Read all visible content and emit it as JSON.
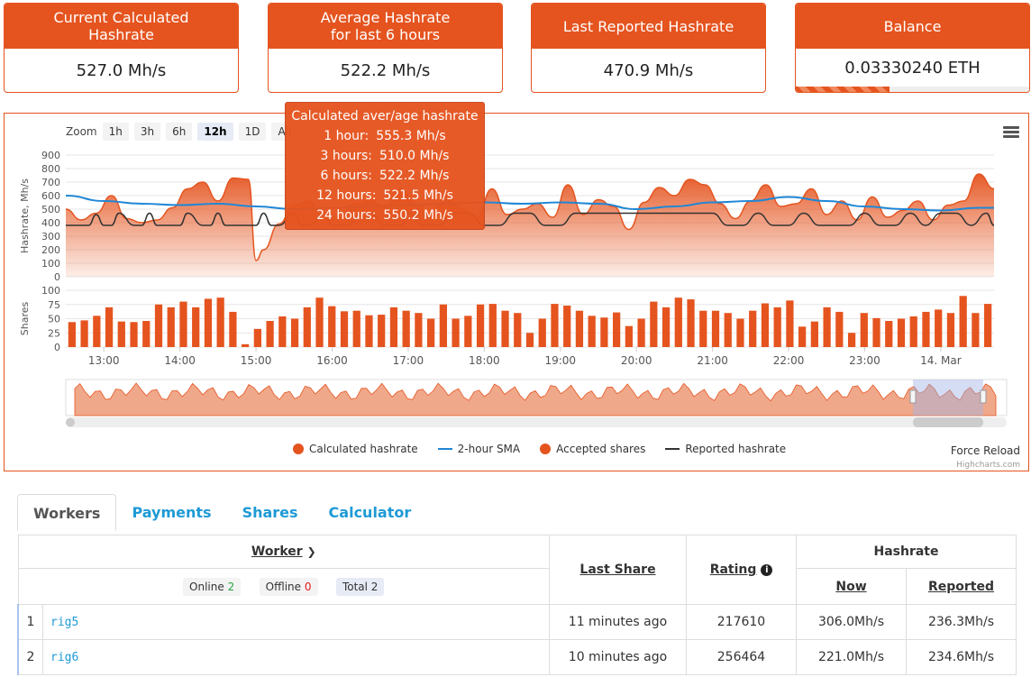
{
  "cards": [
    {
      "title": "Current Calculated\nHashrate",
      "value": "527.0 Mh/s"
    },
    {
      "title": "Average Hashrate\nfor last 6 hours",
      "value": "522.2 Mh/s"
    },
    {
      "title": "Last Reported Hashrate",
      "value": "470.9 Mh/s"
    },
    {
      "title": "Balance",
      "value": "0.03330240 ETH",
      "progress": 0.4
    }
  ],
  "chart": {
    "zoom_label": "Zoom",
    "zoom_buttons": [
      "1h",
      "3h",
      "6h",
      "12h",
      "1D",
      "All"
    ],
    "zoom_active": "12h",
    "menu_icon": "hamburger-menu-icon",
    "tooltip": {
      "title": "Calculated aver/age hashrate",
      "rows": [
        {
          "label": "1 hour:",
          "value": "555.3 Mh/s"
        },
        {
          "label": "3 hours:",
          "value": "510.0 Mh/s"
        },
        {
          "label": "6 hours:",
          "value": "522.2 Mh/s"
        },
        {
          "label": "12 hours:",
          "value": "521.5 Mh/s"
        },
        {
          "label": "24 hours:",
          "value": "550.2 Mh/s"
        }
      ]
    },
    "legend": [
      {
        "label": "Calculated hashrate",
        "kind": "dot",
        "color": "#e5541f"
      },
      {
        "label": "2-hour SMA",
        "kind": "line",
        "color": "#1f87d6"
      },
      {
        "label": "Accepted shares",
        "kind": "dot",
        "color": "#e5541f"
      },
      {
        "label": "Reported hashrate",
        "kind": "line",
        "color": "#333333"
      }
    ],
    "force_reload": "Force Reload",
    "credits": "Highcharts.com"
  },
  "chart_data": {
    "type": "line",
    "ylabel_top": "Hashrate, Mh/s",
    "ylabel_bottom": "Shares",
    "y_ticks_top": [
      0,
      100,
      200,
      300,
      400,
      500,
      600,
      700,
      800,
      900
    ],
    "y_ticks_bottom": [
      0,
      25,
      50,
      75,
      100
    ],
    "x_ticks": [
      "13:00",
      "14:00",
      "15:00",
      "16:00",
      "17:00",
      "18:00",
      "19:00",
      "20:00",
      "21:00",
      "22:00",
      "23:00",
      "14. Mar"
    ],
    "x_start": 12.5,
    "x_end": 24.7,
    "series": [
      {
        "name": "Calculated hashrate",
        "x": [
          12.5,
          12.7,
          12.9,
          13.1,
          13.3,
          13.5,
          13.7,
          13.9,
          14.1,
          14.3,
          14.5,
          14.7,
          14.9,
          15.0,
          15.1,
          15.3,
          15.5,
          15.7,
          15.9,
          16.1,
          16.3,
          16.5,
          16.7,
          16.9,
          17.1,
          17.3,
          17.5,
          17.7,
          17.9,
          18.1,
          18.3,
          18.5,
          18.7,
          18.9,
          19.1,
          19.3,
          19.5,
          19.7,
          19.9,
          20.1,
          20.3,
          20.5,
          20.7,
          20.9,
          21.1,
          21.3,
          21.5,
          21.7,
          21.9,
          22.1,
          22.3,
          22.5,
          22.7,
          22.9,
          23.1,
          23.3,
          23.5,
          23.7,
          23.9,
          24.1,
          24.3,
          24.5,
          24.7
        ],
        "values": [
          500,
          420,
          470,
          600,
          430,
          400,
          420,
          510,
          650,
          700,
          560,
          730,
          720,
          120,
          200,
          390,
          530,
          560,
          430,
          450,
          540,
          560,
          520,
          650,
          540,
          470,
          600,
          500,
          430,
          650,
          460,
          500,
          540,
          440,
          680,
          460,
          570,
          520,
          350,
          550,
          660,
          600,
          720,
          680,
          540,
          430,
          560,
          680,
          520,
          540,
          650,
          460,
          560,
          420,
          590,
          440,
          490,
          560,
          420,
          530,
          560,
          760,
          650
        ]
      },
      {
        "name": "2-hour SMA",
        "x": [
          12.5,
          13.0,
          13.5,
          14.0,
          14.5,
          15.0,
          15.5,
          16.0,
          16.5,
          17.0,
          17.5,
          18.0,
          18.5,
          19.0,
          19.5,
          20.0,
          20.5,
          21.0,
          21.5,
          22.0,
          22.5,
          23.0,
          23.5,
          24.0,
          24.5,
          24.7
        ],
        "values": [
          600,
          560,
          540,
          530,
          540,
          520,
          500,
          510,
          520,
          530,
          540,
          550,
          540,
          550,
          540,
          500,
          520,
          550,
          560,
          590,
          560,
          520,
          500,
          490,
          510,
          510
        ]
      },
      {
        "name": "Reported hashrate",
        "x": [
          12.5,
          12.8,
          12.9,
          13.0,
          13.1,
          13.2,
          13.4,
          13.5,
          13.6,
          13.7,
          13.8,
          14.0,
          14.1,
          14.3,
          14.4,
          14.5,
          14.6,
          14.8,
          15.0,
          15.1,
          15.2,
          15.3,
          15.5,
          15.6,
          15.7,
          15.9,
          16.0,
          16.2,
          16.4,
          16.5,
          16.7,
          16.9,
          17.0,
          17.2,
          17.4,
          17.6,
          17.8,
          18.0,
          18.2,
          18.4,
          18.6,
          18.8,
          19.0,
          19.2,
          19.4,
          19.6,
          19.8,
          20.0,
          20.2,
          20.4,
          20.6,
          20.8,
          21.0,
          21.2,
          21.4,
          21.6,
          21.8,
          22.0,
          22.2,
          22.4,
          22.6,
          22.8,
          23.0,
          23.2,
          23.4,
          23.6,
          23.8,
          24.0,
          24.2,
          24.4,
          24.6,
          24.7
        ],
        "values": [
          380,
          380,
          460,
          380,
          380,
          470,
          380,
          380,
          470,
          380,
          380,
          380,
          470,
          380,
          380,
          470,
          380,
          380,
          380,
          470,
          380,
          380,
          470,
          380,
          380,
          470,
          380,
          380,
          470,
          470,
          380,
          380,
          470,
          380,
          380,
          470,
          470,
          380,
          380,
          470,
          470,
          380,
          380,
          470,
          470,
          470,
          470,
          470,
          470,
          470,
          470,
          470,
          470,
          380,
          380,
          470,
          380,
          380,
          470,
          380,
          380,
          380,
          470,
          380,
          380,
          470,
          380,
          470,
          470,
          380,
          470,
          380
        ]
      },
      {
        "name": "Accepted shares",
        "values": [
          44,
          47,
          55,
          70,
          45,
          44,
          46,
          75,
          70,
          80,
          70,
          85,
          87,
          62,
          5,
          32,
          46,
          54,
          50,
          70,
          87,
          72,
          63,
          64,
          56,
          57,
          70,
          64,
          60,
          50,
          75,
          50,
          55,
          75,
          76,
          64,
          60,
          25,
          50,
          76,
          73,
          64,
          55,
          52,
          61,
          37,
          50,
          80,
          70,
          87,
          84,
          64,
          64,
          60,
          50,
          64,
          77,
          70,
          82,
          36,
          45,
          70,
          62,
          25,
          60,
          51,
          46,
          50,
          54,
          62,
          66,
          60,
          90,
          60,
          76
        ]
      }
    ]
  },
  "tabs": [
    {
      "label": "Workers",
      "active": true
    },
    {
      "label": "Payments",
      "active": false
    },
    {
      "label": "Shares",
      "active": false
    },
    {
      "label": "Calculator",
      "active": false
    }
  ],
  "workers_table": {
    "col_worker": "Worker",
    "col_last_share": "Last Share",
    "col_rating": "Rating",
    "col_hashrate": "Hashrate",
    "col_now": "Now",
    "col_reported": "Reported",
    "online_label": "Online",
    "online_count": "2",
    "offline_label": "Offline",
    "offline_count": "0",
    "total_label": "Total 2",
    "rows": [
      {
        "idx": "1",
        "name": "rig5",
        "last_share": "11 minutes ago",
        "rating": "217610",
        "now": "306.0Mh/s",
        "reported": "236.3Mh/s"
      },
      {
        "idx": "2",
        "name": "rig6",
        "last_share": "10 minutes ago",
        "rating": "256464",
        "now": "221.0Mh/s",
        "reported": "234.6Mh/s"
      }
    ]
  }
}
